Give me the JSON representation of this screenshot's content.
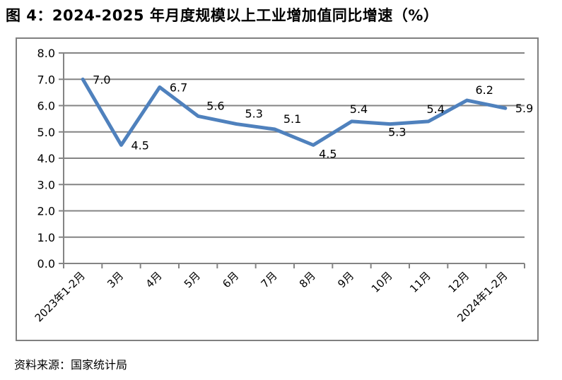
{
  "page": {
    "title": "图 4：2024-2025 年月度规模以上工业增加值同比增速（%）",
    "source": "资料来源：国家统计局"
  },
  "chart_data": {
    "type": "line",
    "title": "图 4：2024-2025 年月度规模以上工业增加值同比增速（%）",
    "categories": [
      "2023年1-2月",
      "3月",
      "4月",
      "5月",
      "6月",
      "7月",
      "8月",
      "9月",
      "10月",
      "11月",
      "12月",
      "2024年1-2月"
    ],
    "values": [
      7.0,
      4.5,
      6.7,
      5.6,
      5.3,
      5.1,
      4.5,
      5.4,
      5.3,
      5.4,
      6.2,
      5.9
    ],
    "data_labels": [
      "7.0",
      "4.5",
      "6.7",
      "5.6",
      "5.3",
      "5.1",
      "4.5",
      "5.4",
      "5.3",
      "5.4",
      "6.2",
      "5.9"
    ],
    "label_placements": [
      "right",
      "right",
      "right",
      "above-right",
      "above-right",
      "above-right",
      "below-right",
      "above",
      "below",
      "above",
      "above-right",
      "right"
    ],
    "xlabel": "",
    "ylabel": "",
    "ylim": [
      0,
      8
    ],
    "ytick_step": 1.0,
    "ytick_labels": [
      "0.0",
      "1.0",
      "2.0",
      "3.0",
      "4.0",
      "5.0",
      "6.0",
      "7.0",
      "8.0"
    ],
    "grid": true,
    "legend": false,
    "markers": false,
    "colors": {
      "line": "#4F81BD",
      "grid": "#848484",
      "axis": "#848484",
      "border": "#808080",
      "text": "#000000"
    }
  }
}
